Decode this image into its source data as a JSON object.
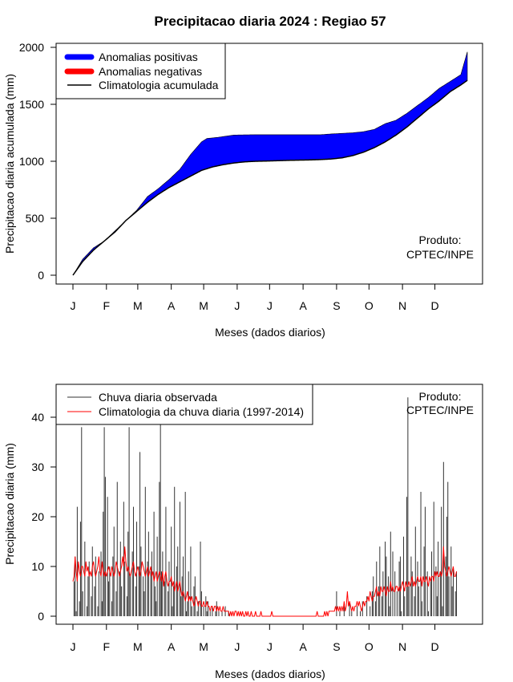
{
  "title": "Precipitacao diaria 2024 : Regiao 57",
  "months": [
    "J",
    "F",
    "M",
    "A",
    "M",
    "J",
    "J",
    "A",
    "S",
    "O",
    "N",
    "D"
  ],
  "month_start_days": [
    1,
    32,
    61,
    92,
    122,
    153,
    183,
    214,
    245,
    275,
    306,
    336
  ],
  "colors": {
    "positive": "#0000ff",
    "negative": "#ff0000",
    "clim": "#000000",
    "obs_bar": "#333333",
    "clim_daily": "#ff0000"
  },
  "chart_data": [
    {
      "type": "area",
      "xlabel": "Meses (dados diarios)",
      "ylabel": "Precipitacao diaria acumulada (mm)",
      "ylim": [
        0,
        2000
      ],
      "xlim": [
        1,
        366
      ],
      "y_ticks": [
        0,
        500,
        1000,
        1500,
        2000
      ],
      "legend": {
        "position": "top-left",
        "entries": [
          {
            "label": "Anomalias positivas",
            "color": "#0000ff"
          },
          {
            "label": "Anomalias negativas",
            "color": "#ff0000"
          },
          {
            "label": "Climatologia acumulada",
            "color": "#000000"
          }
        ]
      },
      "annotation": [
        "Produto:",
        "CPTEC/INPE"
      ],
      "observed_cumulative": {
        "x": [
          1,
          10,
          20,
          30,
          40,
          50,
          60,
          70,
          80,
          90,
          100,
          110,
          120,
          125,
          135,
          150,
          160,
          170,
          180,
          190,
          200,
          210,
          220,
          230,
          240,
          250,
          260,
          270,
          280,
          290,
          300,
          310,
          320,
          330,
          340,
          350,
          360,
          366
        ],
        "y": [
          0,
          140,
          240,
          300,
          390,
          480,
          570,
          690,
          760,
          840,
          930,
          1060,
          1170,
          1200,
          1210,
          1230,
          1232,
          1233,
          1233,
          1233,
          1233,
          1233,
          1233,
          1233,
          1240,
          1245,
          1250,
          1260,
          1280,
          1330,
          1360,
          1420,
          1490,
          1560,
          1640,
          1700,
          1760,
          1960
        ]
      },
      "climatology_cumulative": {
        "x": [
          1,
          10,
          20,
          30,
          40,
          50,
          60,
          70,
          80,
          90,
          100,
          110,
          120,
          130,
          140,
          150,
          160,
          170,
          180,
          190,
          200,
          210,
          220,
          230,
          240,
          250,
          260,
          270,
          280,
          290,
          300,
          310,
          320,
          330,
          340,
          350,
          360,
          366
        ],
        "y": [
          0,
          120,
          220,
          300,
          380,
          480,
          560,
          640,
          710,
          770,
          820,
          870,
          920,
          950,
          970,
          985,
          995,
          1000,
          1002,
          1005,
          1008,
          1010,
          1012,
          1015,
          1020,
          1030,
          1050,
          1080,
          1120,
          1170,
          1230,
          1300,
          1380,
          1460,
          1530,
          1610,
          1670,
          1710
        ]
      }
    },
    {
      "type": "bar",
      "xlabel": "Meses (dados diarios)",
      "ylabel": "Precipitacao diaria (mm)",
      "ylim": [
        0,
        45
      ],
      "xlim": [
        1,
        366
      ],
      "y_ticks": [
        0,
        10,
        20,
        30,
        40
      ],
      "legend": {
        "position": "top-left",
        "entries": [
          {
            "label": "Chuva diaria observada",
            "color": "#333333"
          },
          {
            "label": "Climatologia da chuva diaria (1997-2014)",
            "color": "#ff0000"
          }
        ]
      },
      "annotation": [
        "Produto:",
        "CPTEC/INPE"
      ],
      "observed_daily": [
        0,
        7,
        12,
        1,
        22,
        0,
        3,
        19,
        38,
        5,
        0,
        15,
        0,
        2,
        8,
        11,
        0,
        4,
        14,
        0,
        6,
        12,
        0,
        2,
        9,
        0,
        13,
        3,
        21,
        38,
        28,
        0,
        24,
        7,
        10,
        0,
        3,
        12,
        18,
        0,
        5,
        27,
        0,
        9,
        15,
        6,
        0,
        23,
        11,
        0,
        4,
        17,
        38,
        8,
        0,
        13,
        22,
        0,
        6,
        19,
        0,
        10,
        33,
        14,
        0,
        8,
        5,
        26,
        0,
        11,
        17,
        0,
        9,
        13,
        0,
        21,
        6,
        3,
        16,
        0,
        27,
        41,
        9,
        13,
        0,
        7,
        22,
        0,
        5,
        11,
        0,
        18,
        2,
        6,
        26,
        0,
        10,
        14,
        0,
        23,
        4,
        8,
        12,
        0,
        25,
        1,
        3,
        9,
        0,
        14,
        2,
        0,
        6,
        8,
        0,
        1,
        3,
        0,
        15,
        5,
        0,
        2,
        0,
        4,
        1,
        3,
        0,
        1,
        0,
        2,
        0,
        0,
        1,
        3,
        0,
        1,
        0,
        0,
        1,
        0,
        0,
        2,
        0,
        0,
        1,
        0,
        0,
        0,
        0,
        0,
        0,
        0,
        0,
        0,
        0,
        0,
        0,
        0,
        0,
        0,
        0,
        0,
        0,
        0,
        0,
        0,
        0,
        0,
        0,
        0,
        0,
        0,
        0,
        0,
        0,
        0,
        0,
        0,
        0,
        0,
        0,
        0,
        0,
        0,
        0,
        0,
        0,
        0,
        0,
        0,
        0,
        0,
        0,
        0,
        0,
        0,
        0,
        0,
        0,
        0,
        0,
        0,
        0,
        0,
        0,
        0,
        0,
        0,
        0,
        0,
        0,
        0,
        0,
        0,
        0,
        0,
        0,
        0,
        0,
        0,
        0,
        0,
        0,
        0,
        0,
        0,
        0,
        0,
        0,
        0,
        0,
        0,
        0,
        0,
        0,
        0,
        0,
        0,
        0,
        0,
        0,
        0,
        0,
        0,
        5,
        0,
        0,
        1,
        0,
        0,
        0,
        2,
        0,
        0,
        0,
        0,
        3,
        0,
        1,
        0,
        0,
        0,
        0,
        2,
        0,
        0,
        1,
        0,
        3,
        0,
        0,
        0,
        4,
        0,
        0,
        2,
        0,
        5,
        8,
        0,
        3,
        11,
        0,
        6,
        14,
        0,
        4,
        9,
        0,
        15,
        12,
        0,
        8,
        2,
        17,
        0,
        13,
        0,
        9,
        0,
        5,
        0,
        11,
        12,
        1,
        0,
        16,
        4,
        0,
        24,
        44,
        6,
        0,
        12,
        9,
        0,
        4,
        18,
        0,
        11,
        6,
        0,
        25,
        3,
        0,
        14,
        22,
        0,
        9,
        1,
        0,
        7,
        13,
        0,
        23,
        0,
        10,
        4,
        15,
        0,
        9,
        22,
        2,
        31,
        0,
        12,
        20,
        27,
        8,
        0,
        14,
        6,
        10,
        0,
        5,
        9
      ],
      "climatology_daily": [
        7,
        8,
        12,
        9,
        7,
        11,
        9,
        8,
        10,
        10,
        9,
        8,
        11,
        9,
        10,
        8,
        9,
        8,
        10,
        11,
        9,
        8,
        9,
        10,
        12,
        9,
        8,
        11,
        9,
        8,
        9,
        8,
        9,
        10,
        9,
        8,
        10,
        9,
        8,
        9,
        11,
        10,
        9,
        8,
        9,
        10,
        12,
        10,
        14,
        11,
        9,
        10,
        9,
        8,
        9,
        10,
        11,
        9,
        8,
        9,
        10,
        9,
        8,
        9,
        11,
        10,
        9,
        8,
        9,
        10,
        8,
        9,
        10,
        8,
        9,
        7,
        8,
        9,
        7,
        8,
        9,
        8,
        7,
        9,
        6,
        8,
        9,
        7,
        6,
        7,
        7,
        8,
        6,
        7,
        5,
        6,
        7,
        5,
        6,
        7,
        5,
        4,
        5,
        4,
        3,
        4,
        5,
        3,
        4,
        3,
        4,
        3,
        2,
        3,
        4,
        3,
        2,
        3,
        3,
        2,
        2,
        3,
        2,
        2,
        3,
        2,
        2,
        1,
        2,
        2,
        1,
        2,
        2,
        1,
        2,
        1,
        2,
        1,
        1,
        2,
        1,
        1,
        1,
        1,
        1,
        0,
        1,
        0,
        1,
        0,
        1,
        1,
        0,
        1,
        0,
        1,
        0,
        1,
        0,
        0,
        1,
        0,
        1,
        0,
        0,
        1,
        0,
        0,
        0,
        1,
        0,
        0,
        0,
        0,
        1,
        0,
        0,
        0,
        0,
        0,
        0,
        0,
        0,
        0,
        1,
        0,
        0,
        0,
        0,
        0,
        0,
        0,
        0,
        0,
        0,
        0,
        0,
        0,
        0,
        0,
        0,
        0,
        0,
        0,
        0,
        0,
        0,
        0,
        0,
        0,
        0,
        0,
        0,
        0,
        0,
        0,
        0,
        0,
        0,
        0,
        0,
        0,
        0,
        0,
        0,
        0,
        1,
        0,
        0,
        0,
        0,
        0,
        0,
        1,
        0,
        1,
        0,
        1,
        1,
        1,
        1,
        1,
        1,
        2,
        1,
        2,
        1,
        2,
        1,
        2,
        1,
        3,
        1,
        2,
        5,
        2,
        3,
        2,
        1,
        2,
        1,
        2,
        2,
        3,
        2,
        3,
        2,
        1,
        2,
        3,
        2,
        3,
        3,
        4,
        3,
        5,
        4,
        3,
        4,
        4,
        5,
        6,
        4,
        5,
        4,
        6,
        5,
        5,
        6,
        5,
        4,
        6,
        5,
        5,
        7,
        5,
        6,
        5,
        5,
        6,
        6,
        5,
        6,
        5,
        6,
        7,
        6,
        5,
        7,
        6,
        6,
        7,
        6,
        7,
        8,
        6,
        7,
        6,
        7,
        8,
        7,
        7,
        8,
        6,
        8,
        7,
        7,
        8,
        7,
        6,
        8,
        7,
        8,
        8,
        7,
        9,
        8,
        9,
        8,
        8,
        9,
        8,
        9,
        14,
        10,
        9,
        8,
        9,
        10,
        9,
        8,
        9,
        10,
        8,
        8,
        9
      ]
    }
  ]
}
